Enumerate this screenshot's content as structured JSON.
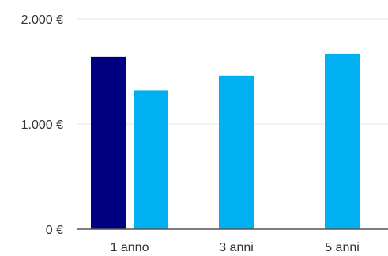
{
  "chart_data": {
    "type": "bar",
    "categories": [
      "1 anno",
      "3 anni",
      "5 anni"
    ],
    "series": [
      {
        "values": [
          1640,
          null,
          null
        ]
      },
      {
        "values": [
          1320,
          1460,
          1670
        ]
      }
    ],
    "ylim": [
      0,
      2000
    ],
    "yticks": [
      {
        "value": 0,
        "label": "0 €"
      },
      {
        "value": 1000,
        "label": "1.000 €"
      },
      {
        "value": 2000,
        "label": "2.000 €"
      }
    ],
    "grid": true,
    "legend": "none",
    "colors": [
      "#000080",
      "#00b0f0"
    ],
    "grid_color": "#dde3ee",
    "axis_color": "#555555"
  }
}
